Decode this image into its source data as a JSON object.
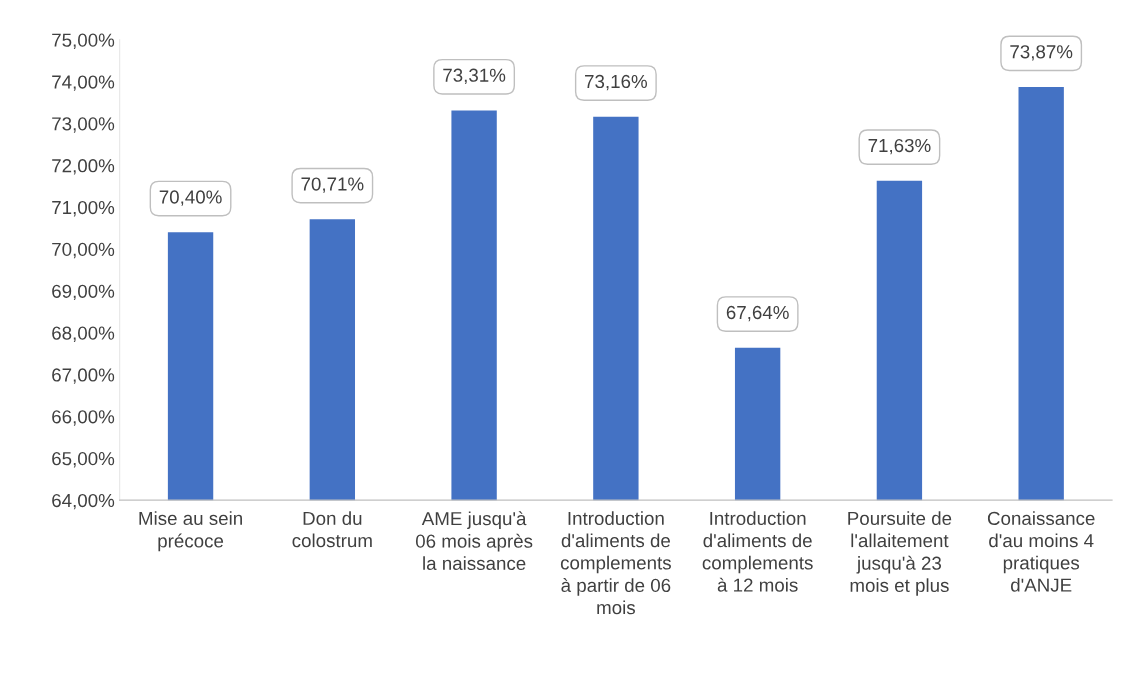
{
  "chart_data": {
    "type": "bar",
    "categories": [
      "Mise au sein\nprécoce",
      "Don du\ncolostrum",
      "AME jusqu'à\n06 mois après\nla naissance",
      "Introduction\nd'aliments de\ncomplements\nà partir de 06\nmois",
      "Introduction\nd'aliments de\ncomplements\nà 12 mois",
      "Poursuite de\nl'allaitement\njusqu'à 23\nmois et plus",
      "Conaissance\nd'au moins 4\npratiques\nd'ANJE"
    ],
    "values": [
      70.4,
      70.71,
      73.31,
      73.16,
      67.64,
      71.63,
      73.87
    ],
    "value_labels": [
      "70,40%",
      "70,71%",
      "73,31%",
      "73,16%",
      "67,64%",
      "71,63%",
      "73,87%"
    ],
    "color": "#4472c4",
    "ylim": [
      64,
      75
    ],
    "yticks": [
      {
        "value": 64,
        "label": "64,00%"
      },
      {
        "value": 65,
        "label": "65,00%"
      },
      {
        "value": 66,
        "label": "66,00%"
      },
      {
        "value": 67,
        "label": "67,00%"
      },
      {
        "value": 68,
        "label": "68,00%"
      },
      {
        "value": 69,
        "label": "69,00%"
      },
      {
        "value": 70,
        "label": "70,00%"
      },
      {
        "value": 71,
        "label": "71,00%"
      },
      {
        "value": 72,
        "label": "72,00%"
      },
      {
        "value": 73,
        "label": "73,00%"
      },
      {
        "value": 74,
        "label": "74,00%"
      },
      {
        "value": 75,
        "label": "75,00%"
      }
    ],
    "grid": false
  }
}
